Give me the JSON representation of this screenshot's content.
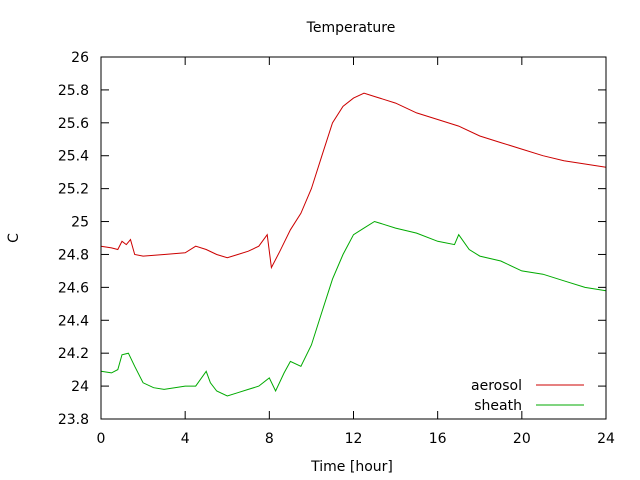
{
  "chart_data": {
    "type": "line",
    "title": "Temperature",
    "xlabel": "Time [hour]",
    "ylabel": "C",
    "xlim": [
      0,
      24
    ],
    "ylim": [
      23.8,
      26
    ],
    "xticks": [
      0,
      4,
      8,
      12,
      16,
      20,
      24
    ],
    "yticks": [
      23.8,
      24,
      24.2,
      24.4,
      24.6,
      24.8,
      25,
      25.2,
      25.4,
      25.6,
      25.8,
      26
    ],
    "ytick_labels": [
      "23.8",
      "24",
      "24.2",
      "24.4",
      "24.6",
      "24.8",
      "25",
      "25.2",
      "25.4",
      "25.6",
      "25.8",
      "26"
    ],
    "grid": false,
    "legend_position": "bottom-right",
    "series": [
      {
        "name": "aerosol",
        "color": "#cc0000",
        "x": [
          0,
          0.5,
          0.8,
          1.0,
          1.2,
          1.4,
          1.6,
          2.0,
          3.0,
          4.0,
          4.5,
          5.0,
          5.5,
          6.0,
          6.5,
          7.0,
          7.5,
          7.9,
          8.1,
          8.5,
          9.0,
          9.5,
          10.0,
          10.5,
          11.0,
          11.5,
          12.0,
          12.5,
          13.0,
          13.5,
          14.0,
          15.0,
          16.0,
          17.0,
          18.0,
          19.0,
          20.0,
          21.0,
          22.0,
          23.0,
          24.0
        ],
        "y": [
          24.85,
          24.84,
          24.83,
          24.88,
          24.86,
          24.89,
          24.8,
          24.79,
          24.8,
          24.81,
          24.85,
          24.83,
          24.8,
          24.78,
          24.8,
          24.82,
          24.85,
          24.92,
          24.72,
          24.82,
          24.95,
          25.05,
          25.2,
          25.4,
          25.6,
          25.7,
          25.75,
          25.78,
          25.76,
          25.74,
          25.72,
          25.66,
          25.62,
          25.58,
          25.52,
          25.48,
          25.44,
          25.4,
          25.37,
          25.35,
          25.33
        ]
      },
      {
        "name": "sheath",
        "color": "#00aa00",
        "x": [
          0,
          0.5,
          0.8,
          1.0,
          1.3,
          1.6,
          2.0,
          2.5,
          3.0,
          4.0,
          4.5,
          5.0,
          5.2,
          5.5,
          6.0,
          6.5,
          7.0,
          7.5,
          8.0,
          8.3,
          8.7,
          9.0,
          9.5,
          10.0,
          10.5,
          11.0,
          11.5,
          12.0,
          12.5,
          13.0,
          13.5,
          14.0,
          15.0,
          16.0,
          16.8,
          17.0,
          17.5,
          18.0,
          19.0,
          20.0,
          21.0,
          22.0,
          23.0,
          24.0
        ],
        "y": [
          24.09,
          24.08,
          24.1,
          24.19,
          24.2,
          24.12,
          24.02,
          23.99,
          23.98,
          24.0,
          24.0,
          24.09,
          24.02,
          23.97,
          23.94,
          23.96,
          23.98,
          24.0,
          24.05,
          23.97,
          24.08,
          24.15,
          24.12,
          24.25,
          24.45,
          24.65,
          24.8,
          24.92,
          24.96,
          25.0,
          24.98,
          24.96,
          24.93,
          24.88,
          24.86,
          24.92,
          24.83,
          24.79,
          24.76,
          24.7,
          24.68,
          24.64,
          24.6,
          24.58
        ]
      }
    ]
  }
}
